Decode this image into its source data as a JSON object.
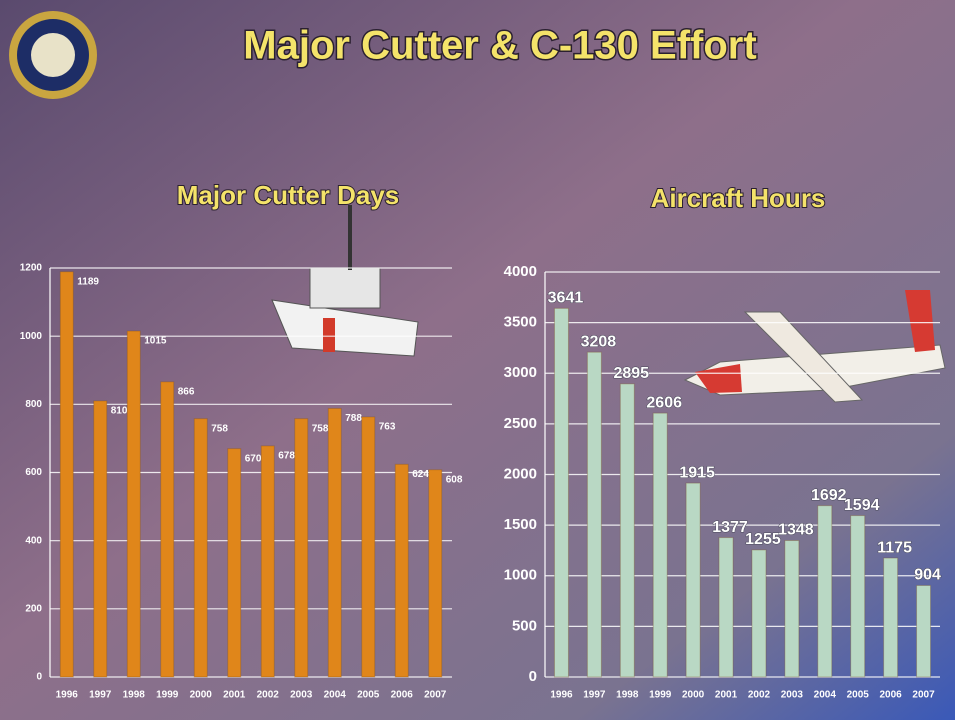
{
  "title": "Major Cutter & C-130 Effort",
  "chart_data": [
    {
      "type": "bar",
      "title": "Major Cutter Days",
      "categories": [
        "1996",
        "1997",
        "1998",
        "1999",
        "2000",
        "2001",
        "2002",
        "2003",
        "2004",
        "2005",
        "2006",
        "2007"
      ],
      "values": [
        1189,
        810,
        1015,
        866,
        758,
        670,
        678,
        758,
        788,
        763,
        624,
        608
      ],
      "color": "#e0861a",
      "ylim": [
        0,
        1200
      ],
      "yticks": [
        0,
        200,
        400,
        600,
        800,
        1000,
        1200
      ],
      "grid": true
    },
    {
      "type": "bar",
      "title": "Aircraft Hours",
      "categories": [
        "1996",
        "1997",
        "1998",
        "1999",
        "2000",
        "2001",
        "2002",
        "2003",
        "2004",
        "2005",
        "2006",
        "2007"
      ],
      "values": [
        3641,
        3208,
        2895,
        2606,
        1915,
        1377,
        1255,
        1348,
        1692,
        1594,
        1175,
        904
      ],
      "color": "#b9d8c4",
      "ylim": [
        0,
        4000
      ],
      "yticks": [
        0,
        500,
        1000,
        1500,
        2000,
        2500,
        3000,
        3500,
        4000
      ],
      "grid": true
    }
  ]
}
